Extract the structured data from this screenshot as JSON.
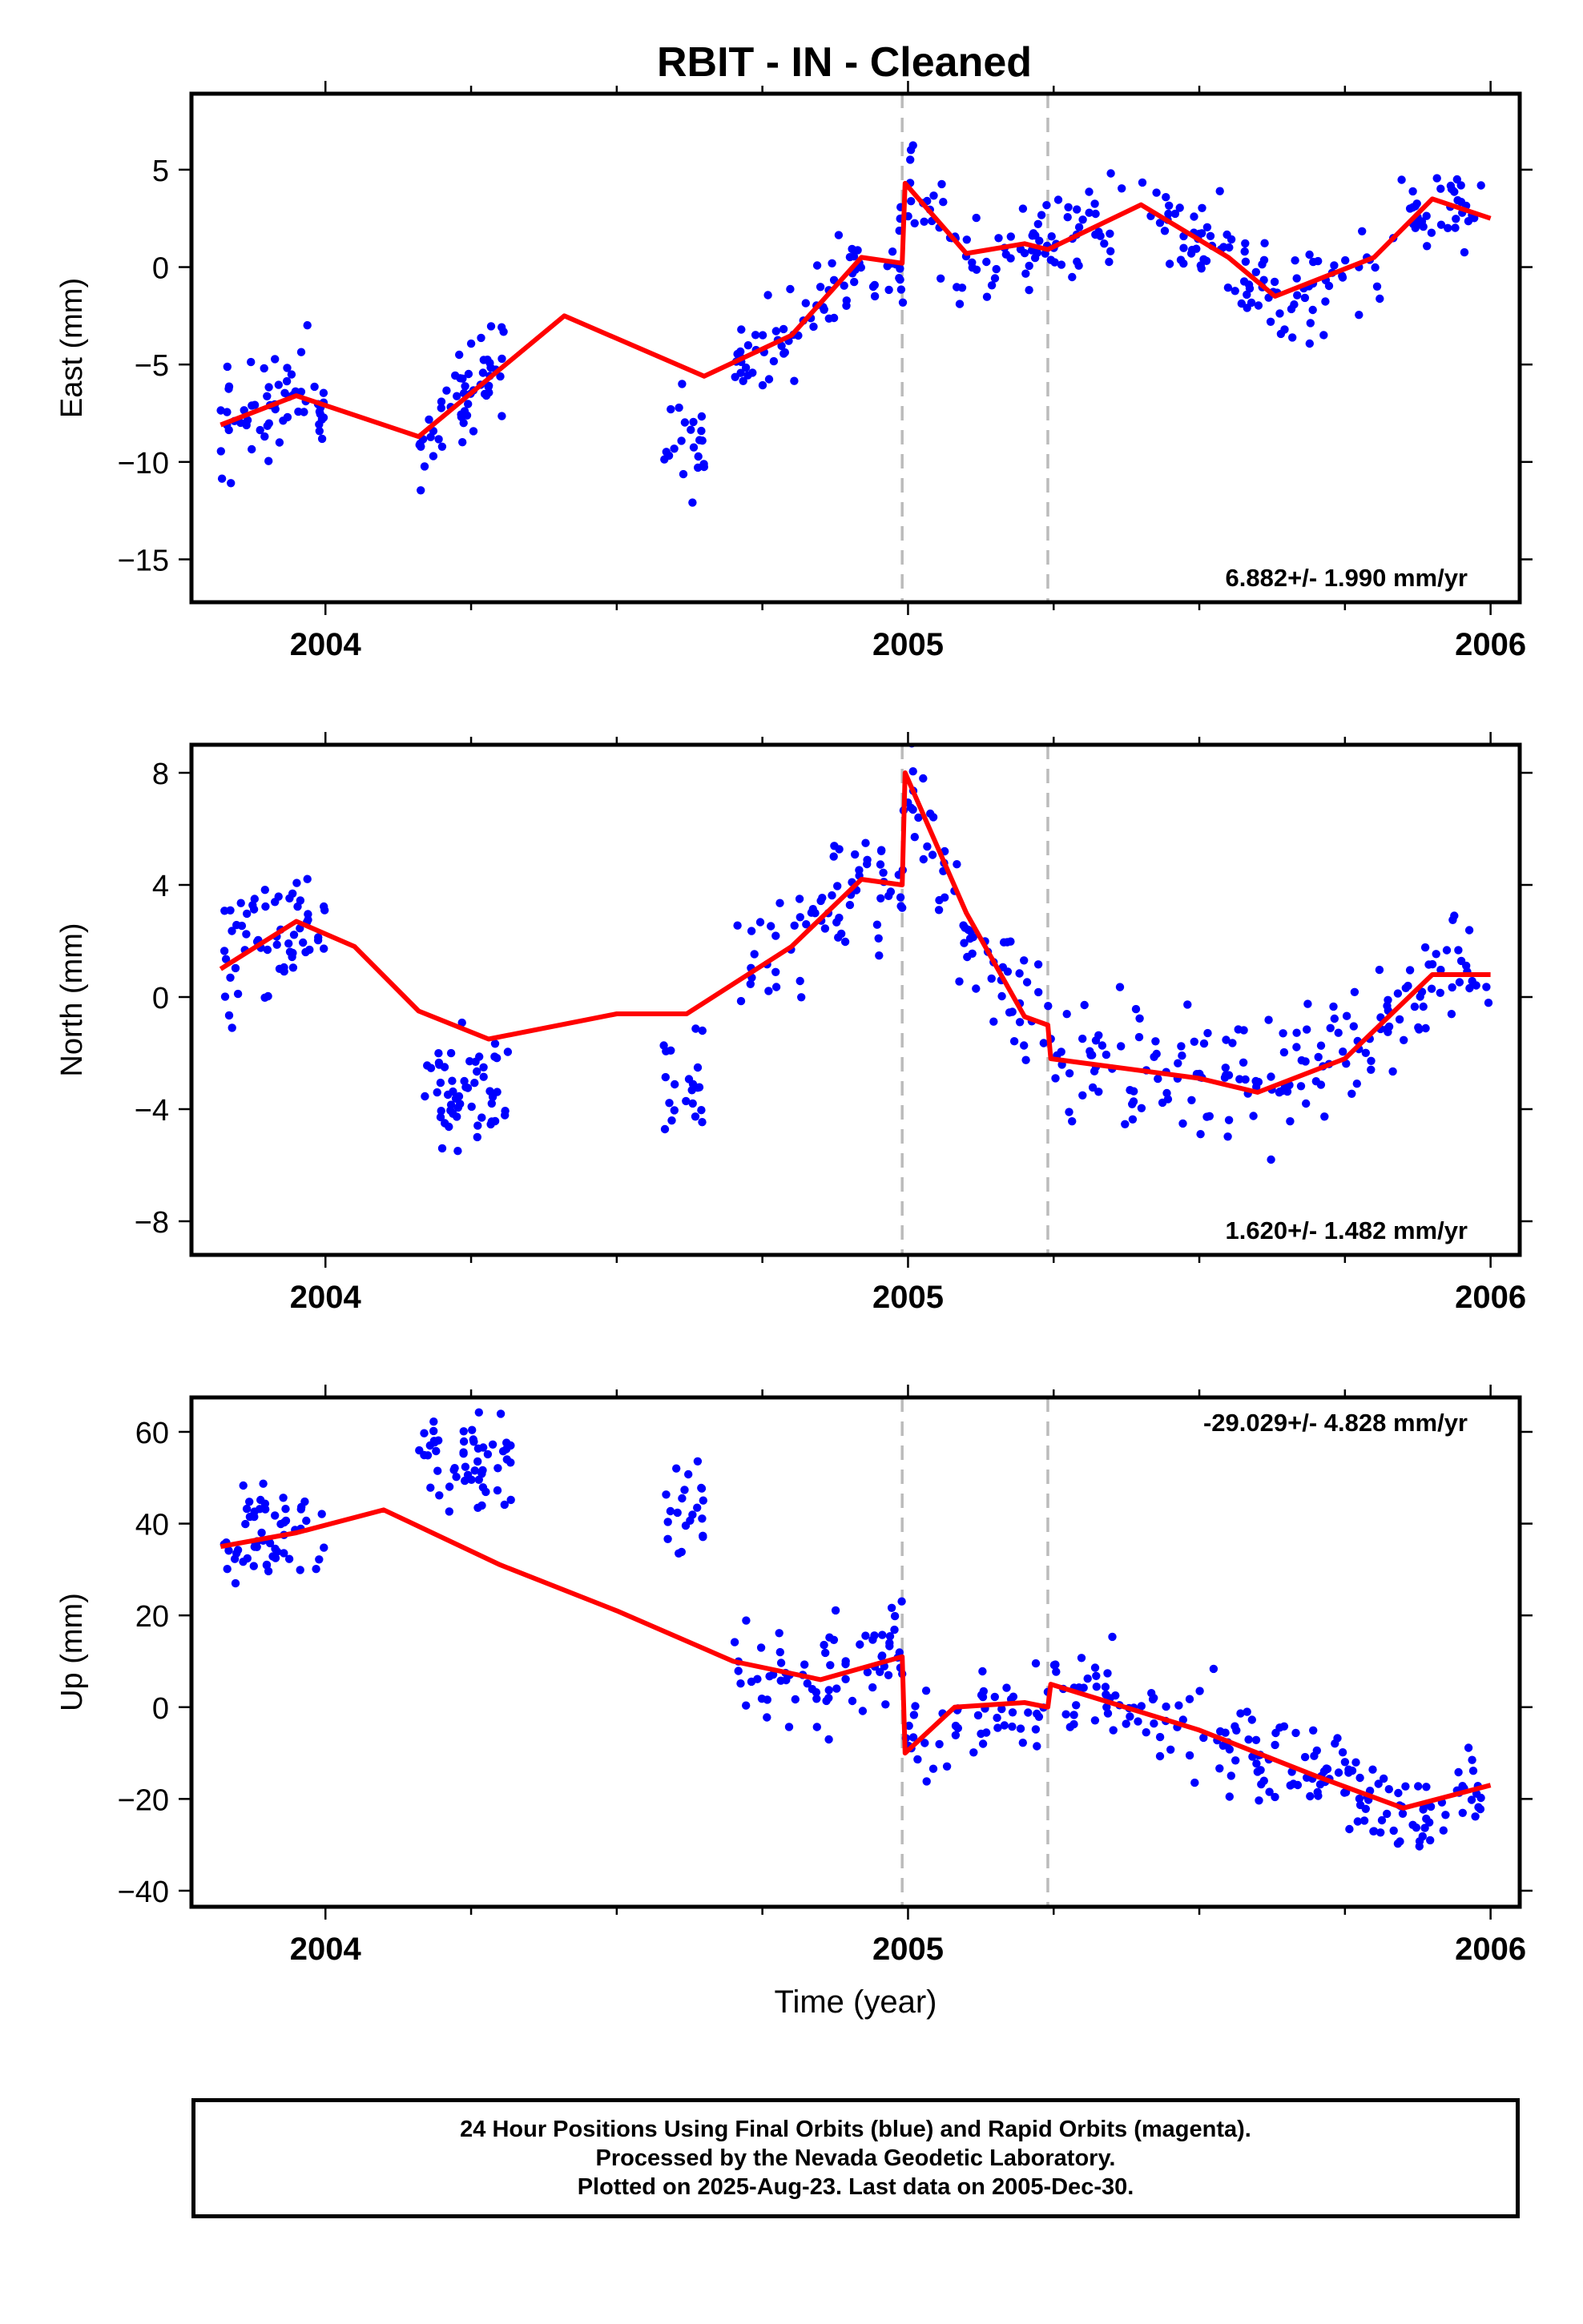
{
  "page_title": "RBIT  - IN - Cleaned",
  "colors": {
    "points": "#0000ff",
    "model": "#ff0000",
    "break_lines": "#bbbbbb"
  },
  "chart_data": [
    {
      "type": "scatter",
      "ylabel": "East (mm)",
      "xlim": [
        2003.77,
        2006.05
      ],
      "ylim": [
        -17.2,
        8.9
      ],
      "yticks": [
        -15,
        -10,
        -5,
        0,
        5
      ],
      "xticks": [
        2004,
        2005,
        2006
      ],
      "break_lines": [
        2004.99,
        2005.24
      ],
      "rate_label": "6.882+/- 1.990 mm/yr",
      "rate_position": "bottom-right",
      "model": {
        "x": [
          2003.82,
          2003.95,
          2004.16,
          2004.41,
          2004.65,
          2004.8,
          2004.92,
          2004.99,
          2004.995,
          2005.1,
          2005.2,
          2005.24,
          2005.4,
          2005.55,
          2005.63,
          2005.8,
          2005.9,
          2006.0
        ],
        "y": [
          -8.1,
          -6.6,
          -8.7,
          -2.5,
          -5.6,
          -3.5,
          0.5,
          0.2,
          4.3,
          0.7,
          1.2,
          0.9,
          3.2,
          0.5,
          -1.5,
          0.5,
          3.5,
          2.5
        ]
      }
    },
    {
      "type": "scatter",
      "ylabel": "North (mm)",
      "xlim": [
        2003.77,
        2006.05
      ],
      "ylim": [
        -9.2,
        9.0
      ],
      "yticks": [
        -8,
        -4,
        0,
        4,
        8
      ],
      "xticks": [
        2004,
        2005,
        2006
      ],
      "break_lines": [
        2004.99,
        2005.24
      ],
      "rate_label": "1.620+/- 1.482 mm/yr",
      "rate_position": "bottom-right",
      "model": {
        "x": [
          2003.82,
          2003.95,
          2004.05,
          2004.16,
          2004.28,
          2004.5,
          2004.62,
          2004.8,
          2004.92,
          2004.99,
          2004.995,
          2005.1,
          2005.2,
          2005.24,
          2005.245,
          2005.5,
          2005.6,
          2005.75,
          2005.9,
          2006.0
        ],
        "y": [
          1.0,
          2.7,
          1.8,
          -0.5,
          -1.5,
          -0.6,
          -0.6,
          1.8,
          4.2,
          4.0,
          8.0,
          3.0,
          -0.7,
          -1.0,
          -2.2,
          -2.9,
          -3.4,
          -2.2,
          0.8,
          0.8
        ]
      }
    },
    {
      "type": "scatter",
      "ylabel": "Up (mm)",
      "xlabel": "Time (year)",
      "xlim": [
        2003.77,
        2006.05
      ],
      "ylim": [
        -43.5,
        67.5
      ],
      "yticks": [
        -40,
        -20,
        0,
        20,
        40,
        60
      ],
      "xticks": [
        2004,
        2005,
        2006
      ],
      "break_lines": [
        2004.99,
        2005.24
      ],
      "rate_label": "-29.029+/- 4.828 mm/yr",
      "rate_position": "top-right",
      "model": {
        "x": [
          2003.82,
          2003.95,
          2004.1,
          2004.3,
          2004.5,
          2004.7,
          2004.85,
          2004.99,
          2004.995,
          2005.08,
          2005.2,
          2005.24,
          2005.245,
          2005.5,
          2005.7,
          2005.85,
          2006.0
        ],
        "y": [
          35,
          38,
          43,
          31,
          21,
          10,
          6,
          11,
          -10,
          0,
          1,
          0,
          5,
          -5,
          -15,
          -22,
          -17
        ]
      }
    }
  ],
  "footer": {
    "line1": "24 Hour Positions Using Final Orbits (blue) and Rapid Orbits (magenta).",
    "line2": "Processed by the Nevada Geodetic Laboratory.",
    "line3": "Plotted on 2025-Aug-23. Last data on 2005-Dec-30."
  }
}
